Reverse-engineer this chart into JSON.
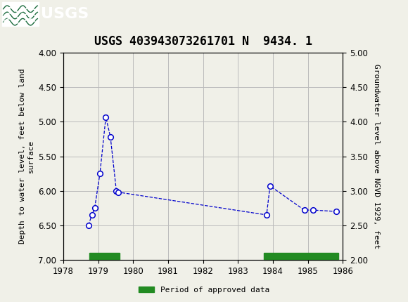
{
  "title": "USGS 403943073261701 N  9434. 1",
  "ylabel_left": "Depth to water level, feet below land\nsurface",
  "ylabel_right": "Groundwater level above NGVD 1929, feet",
  "xlim": [
    1978,
    1986
  ],
  "ylim_left_bottom": 7.0,
  "ylim_left_top": 4.0,
  "ylim_right_bottom": 2.0,
  "ylim_right_top": 5.0,
  "yticks_left": [
    4.0,
    4.5,
    5.0,
    5.5,
    6.0,
    6.5,
    7.0
  ],
  "yticks_right": [
    2.0,
    2.5,
    3.0,
    3.5,
    4.0,
    4.5,
    5.0
  ],
  "xticks": [
    1978,
    1979,
    1980,
    1981,
    1982,
    1983,
    1984,
    1985,
    1986
  ],
  "data_x": [
    1978.72,
    1978.82,
    1978.9,
    1979.05,
    1979.22,
    1979.35,
    1979.52,
    1979.57,
    1983.82,
    1983.92,
    1984.9,
    1985.15,
    1985.82
  ],
  "data_y": [
    6.5,
    6.35,
    6.25,
    5.75,
    4.93,
    5.22,
    6.0,
    6.02,
    6.35,
    5.93,
    6.28,
    6.28,
    6.3
  ],
  "line_color": "#0000cc",
  "marker_face": "white",
  "grid_color": "#bbbbbb",
  "bg_color": "#f0f0e8",
  "header_color": "#1a6b3c",
  "approved_bars": [
    {
      "x_start": 1978.75,
      "x_end": 1979.62
    },
    {
      "x_start": 1983.75,
      "x_end": 1985.87
    }
  ],
  "approved_bar_height": 0.1,
  "approved_color": "#228B22",
  "legend_label": "Period of approved data",
  "font_family": "monospace",
  "title_fontsize": 12,
  "label_fontsize": 8,
  "tick_fontsize": 8.5
}
